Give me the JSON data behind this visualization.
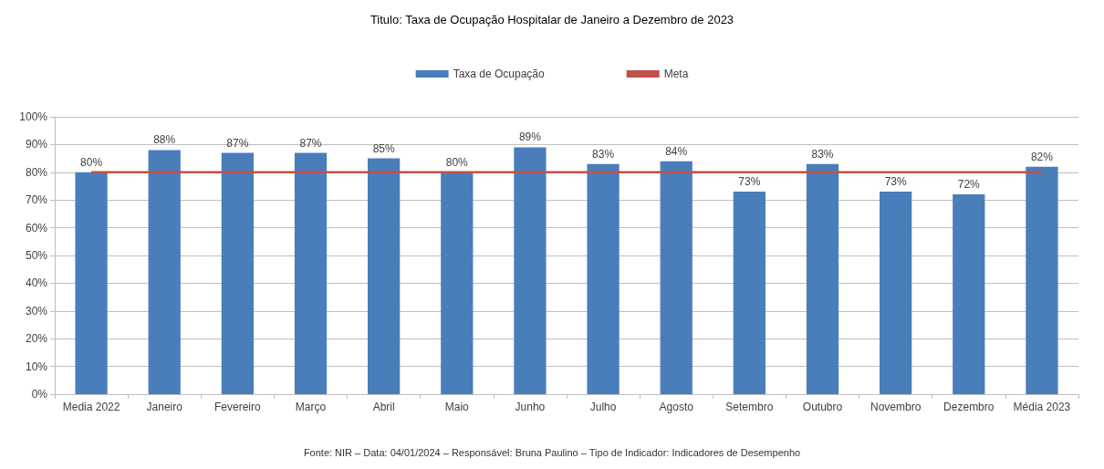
{
  "chart_data": {
    "type": "bar",
    "title": "Titulo: Taxa de Ocupação Hospitalar de Janeiro a Dezembro de 2023",
    "categories": [
      "Media 2022",
      "Janeiro",
      "Fevereiro",
      "Março",
      "Abril",
      "Maio",
      "Junho",
      "Julho",
      "Agosto",
      "Setembro",
      "Outubro",
      "Novembro",
      "Dezembro",
      "Média 2023"
    ],
    "series": [
      {
        "name": "Taxa de Ocupação",
        "color": "#4a7ebb",
        "values": [
          80,
          88,
          87,
          87,
          85,
          80,
          89,
          83,
          84,
          73,
          83,
          73,
          72,
          82
        ],
        "value_labels": [
          "80%",
          "88%",
          "87%",
          "87%",
          "85%",
          "80%",
          "89%",
          "83%",
          "84%",
          "73%",
          "83%",
          "73%",
          "72%",
          "82%"
        ]
      },
      {
        "name": "Meta",
        "type": "line",
        "color": "#c0504d",
        "values": [
          80,
          80,
          80,
          80,
          80,
          80,
          80,
          80,
          80,
          80,
          80,
          80,
          80,
          80
        ]
      }
    ],
    "ylim": [
      0,
      100
    ],
    "yticks": [
      {
        "value": 0,
        "label": "0%"
      },
      {
        "value": 10,
        "label": "10%"
      },
      {
        "value": 20,
        "label": "20%"
      },
      {
        "value": 30,
        "label": "30%"
      },
      {
        "value": 40,
        "label": "40%"
      },
      {
        "value": 50,
        "label": "50%"
      },
      {
        "value": 60,
        "label": "60%"
      },
      {
        "value": 70,
        "label": "70%"
      },
      {
        "value": 80,
        "label": "80%"
      },
      {
        "value": 90,
        "label": "90%"
      },
      {
        "value": 100,
        "label": "100%"
      }
    ],
    "grid": "y",
    "legend": "top",
    "marker": "none",
    "annotations": [
      "Fonte: NIR – Data: 04/01/2024 – Responsável: Bruna Paulino – Tipo de Indicador: Indicadores de Desempenho"
    ]
  }
}
